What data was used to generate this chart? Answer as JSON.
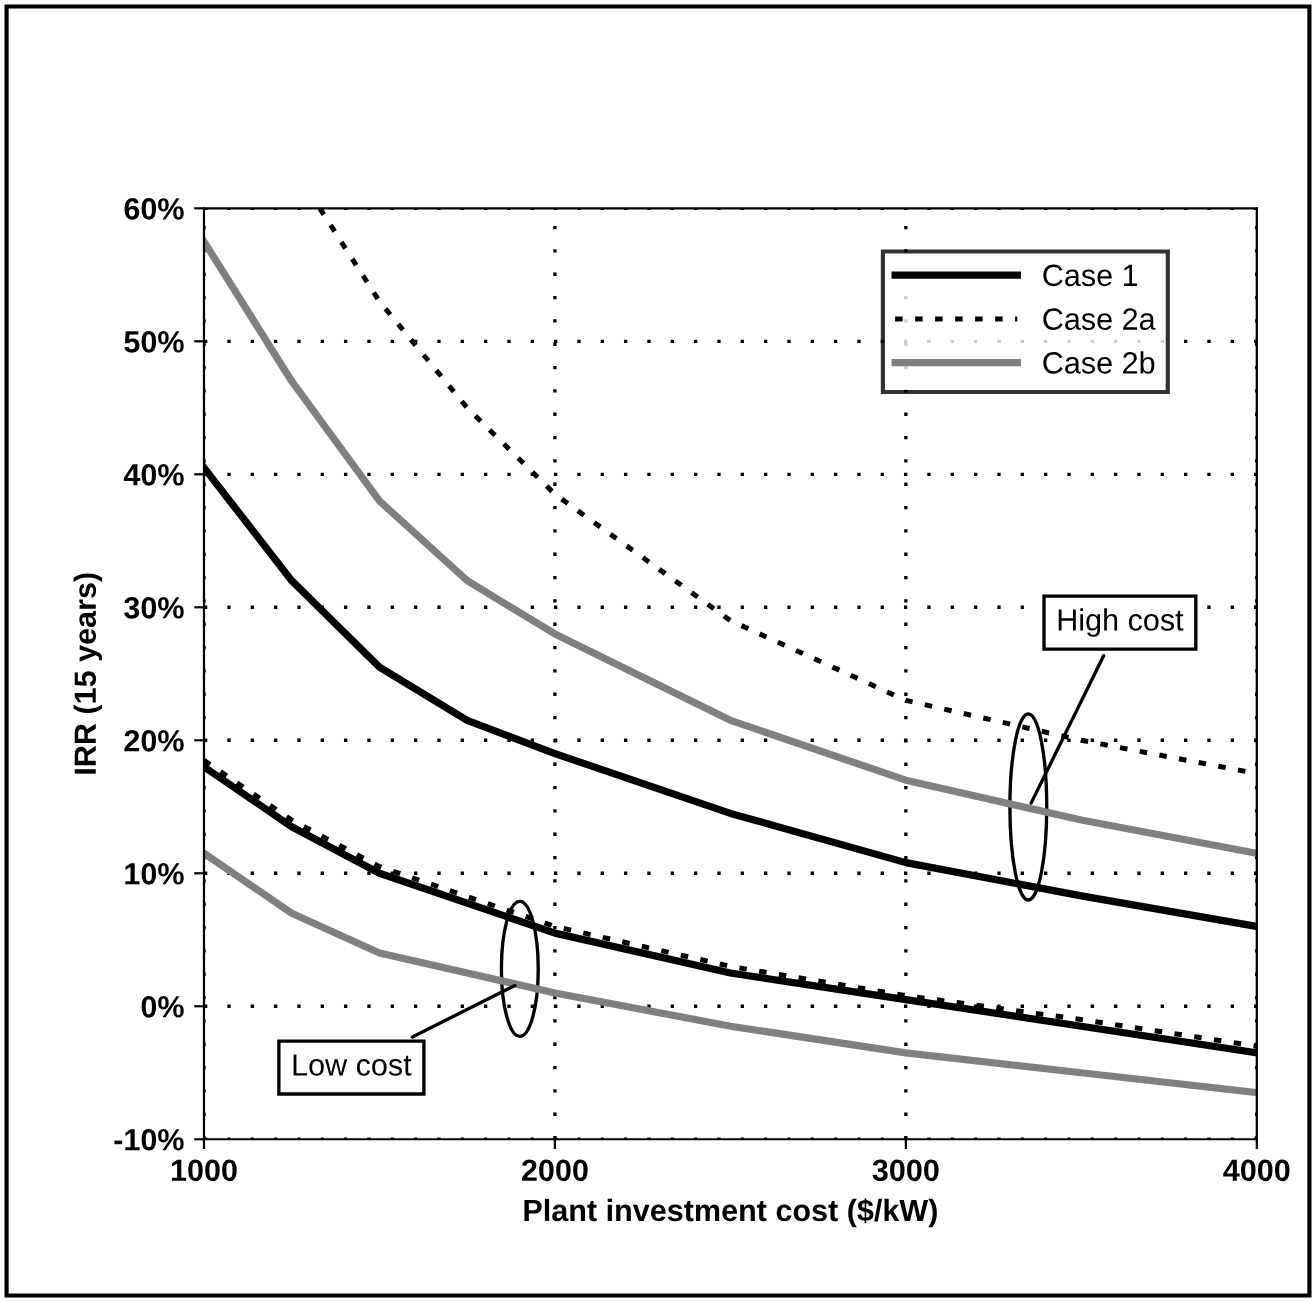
{
  "chart_data": {
    "type": "line",
    "xlabel": "Plant investment cost ($/kW)",
    "ylabel": "IRR (15 years)",
    "xlim": [
      1000,
      4000
    ],
    "xticks": [
      1000,
      2000,
      3000,
      4000
    ],
    "ylim": [
      -10,
      60
    ],
    "yticks": [
      {
        "value": -10,
        "label": "-10%"
      },
      {
        "value": 0,
        "label": "0%"
      },
      {
        "value": 10,
        "label": "10%"
      },
      {
        "value": 20,
        "label": "20%"
      },
      {
        "value": 30,
        "label": "30%"
      },
      {
        "value": 40,
        "label": "40%"
      },
      {
        "value": 50,
        "label": "50%"
      },
      {
        "value": 60,
        "label": "60%"
      }
    ],
    "grid": true,
    "legend": "top right",
    "marker": "none",
    "series": [
      {
        "name": "Case 1",
        "color": "#000000",
        "line_style": "solid",
        "x": [
          1000,
          1250,
          1500,
          1750,
          2000,
          2500,
          3000,
          3500,
          4000
        ],
        "values": [
          40.5,
          32,
          25.5,
          21.5,
          19,
          14.5,
          10.8,
          8.3,
          6
        ]
      },
      {
        "name": "Case 2a",
        "color": "#000000",
        "line_style": "dotted",
        "x": [
          1330,
          1500,
          1750,
          2000,
          2500,
          3000,
          3500,
          4000
        ],
        "values": [
          60,
          53,
          45,
          38.5,
          29,
          23,
          20,
          17.5
        ]
      },
      {
        "name": "Case 2b",
        "color": "#808080",
        "line_style": "solid",
        "x": [
          1000,
          1250,
          1500,
          1750,
          2000,
          2500,
          3000,
          3500,
          4000
        ],
        "values": [
          57.5,
          47,
          38,
          32,
          28,
          21.5,
          17,
          14,
          11.5
        ]
      },
      {
        "color": "#000000",
        "line_style": "solid",
        "x": [
          1000,
          1250,
          1500,
          2000,
          2500,
          3000,
          3500,
          4000
        ],
        "values": [
          18,
          13.5,
          10,
          5.5,
          2.5,
          0.5,
          -1.5,
          -3.5
        ]
      },
      {
        "color": "#000000",
        "line_style": "dotted",
        "x": [
          1000,
          1250,
          1500,
          2000,
          2500,
          3000,
          3500,
          4000
        ],
        "values": [
          18.5,
          14,
          10.5,
          6,
          3,
          0.8,
          -1,
          -3
        ]
      },
      {
        "color": "#808080",
        "line_style": "solid",
        "x": [
          1000,
          1250,
          1500,
          2000,
          2500,
          3000,
          3500,
          4000
        ],
        "values": [
          11.5,
          7,
          4,
          1,
          -1.5,
          -3.5,
          -5,
          -6.5
        ]
      }
    ],
    "annotations": [
      {
        "text": "High cost",
        "x": 3350,
        "y": 14.9
      },
      {
        "text": "Low cost",
        "x": 1900,
        "y": 1.75
      }
    ]
  }
}
